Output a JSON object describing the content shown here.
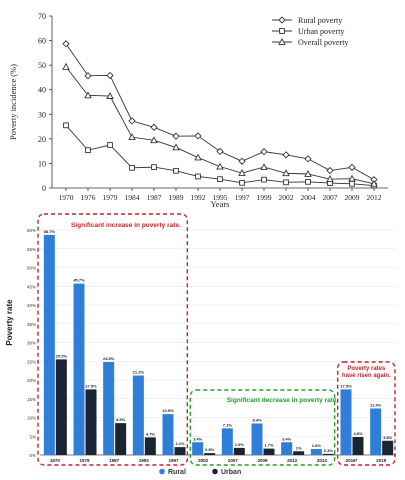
{
  "chart_data": [
    {
      "type": "line",
      "xlabel": "Years",
      "ylabel": "Poverty incidence (%)",
      "ylim": [
        0,
        70
      ],
      "yticks": [
        0,
        10,
        20,
        30,
        40,
        50,
        60,
        70
      ],
      "x": [
        "1970",
        "1976",
        "1979",
        "1984",
        "1987",
        "1989",
        "1992",
        "1995",
        "1997",
        "1999",
        "2002",
        "2004",
        "2007",
        "2009",
        "2012"
      ],
      "grid": false,
      "legend_position": "top-right",
      "series": [
        {
          "name": "Rural poverty",
          "marker": "diamond",
          "values": [
            58.7,
            45.7,
            45.8,
            27.3,
            24.7,
            21.1,
            21.2,
            14.9,
            10.9,
            14.8,
            13.5,
            11.9,
            7.1,
            8.4,
            3.4
          ]
        },
        {
          "name": "Urban poverty",
          "marker": "square",
          "values": [
            25.5,
            15.4,
            17.5,
            8.2,
            8.5,
            7.0,
            4.7,
            3.6,
            2.1,
            3.4,
            2.3,
            2.5,
            2.0,
            1.7,
            1.0
          ]
        },
        {
          "name": "Overall poverty",
          "marker": "triangle",
          "values": [
            49.3,
            37.7,
            37.4,
            20.7,
            19.4,
            16.5,
            12.4,
            8.7,
            6.1,
            8.5,
            6.0,
            5.7,
            3.6,
            3.8,
            1.7
          ]
        }
      ]
    },
    {
      "type": "bar",
      "ylabel": "Poverty rate",
      "ylim": [
        0,
        60
      ],
      "yticks": [
        "0%",
        "5%",
        "10%",
        "15%",
        "20%",
        "25%",
        "30%",
        "35%",
        "40%",
        "45%",
        "50%",
        "55%",
        "60%"
      ],
      "categories": [
        "1970",
        "1979",
        "1987",
        "1992",
        "1997",
        "2002",
        "2007",
        "2009",
        "2012",
        "2014",
        "2016*",
        "2019"
      ],
      "legend_position": "bottom-center",
      "series": [
        {
          "name": "Rural",
          "color": "#2f7ed8",
          "values": [
            58.7,
            45.7,
            24.8,
            21.2,
            10.9,
            3.4,
            7.1,
            8.4,
            3.4,
            1.6,
            17.5,
            12.4
          ],
          "labels": [
            "58.7%",
            "45.7%",
            "24.8%",
            "21.2%",
            "10.9%",
            "3.4%",
            "7.1%",
            "8.4%",
            "3.4%",
            "1.6%",
            "17.5%",
            "12.4%"
          ]
        },
        {
          "name": "Urban",
          "color": "#1a2433",
          "values": [
            25.5,
            17.5,
            8.5,
            4.7,
            2.1,
            0.5,
            1.9,
            1.7,
            1.0,
            0.3,
            4.8,
            3.8
          ],
          "labels": [
            "25.5%",
            "17.5%",
            "8.5%",
            "4.7%",
            "2.1%",
            "0.5%",
            "1.9%",
            "1.7%",
            "1%",
            "0.3%",
            "4.8%",
            "3.8%"
          ]
        }
      ],
      "annotations": [
        {
          "text": "Significant increase in poverty rate.",
          "color": "#c0272d"
        },
        {
          "text": "Significant decrease in poverty rate.",
          "color": "#1fa02a"
        },
        {
          "text": "Poverty rates have risen again.",
          "color": "#c0272d"
        }
      ]
    }
  ]
}
